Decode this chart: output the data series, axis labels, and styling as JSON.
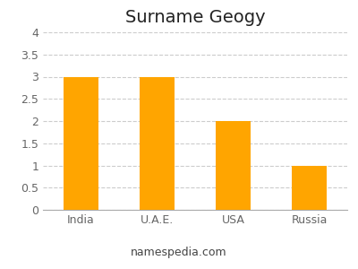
{
  "title": "Surname Geogy",
  "categories": [
    "India",
    "U.A.E.",
    "USA",
    "Russia"
  ],
  "values": [
    3,
    3,
    2,
    1
  ],
  "bar_color": "#FFA500",
  "ylim": [
    0,
    4
  ],
  "yticks": [
    0,
    0.5,
    1,
    1.5,
    2,
    2.5,
    3,
    3.5,
    4
  ],
  "grid_color": "#cccccc",
  "background_color": "#ffffff",
  "footer_text": "namespedia.com",
  "title_fontsize": 14,
  "tick_fontsize": 9,
  "footer_fontsize": 9,
  "bar_width": 0.45
}
